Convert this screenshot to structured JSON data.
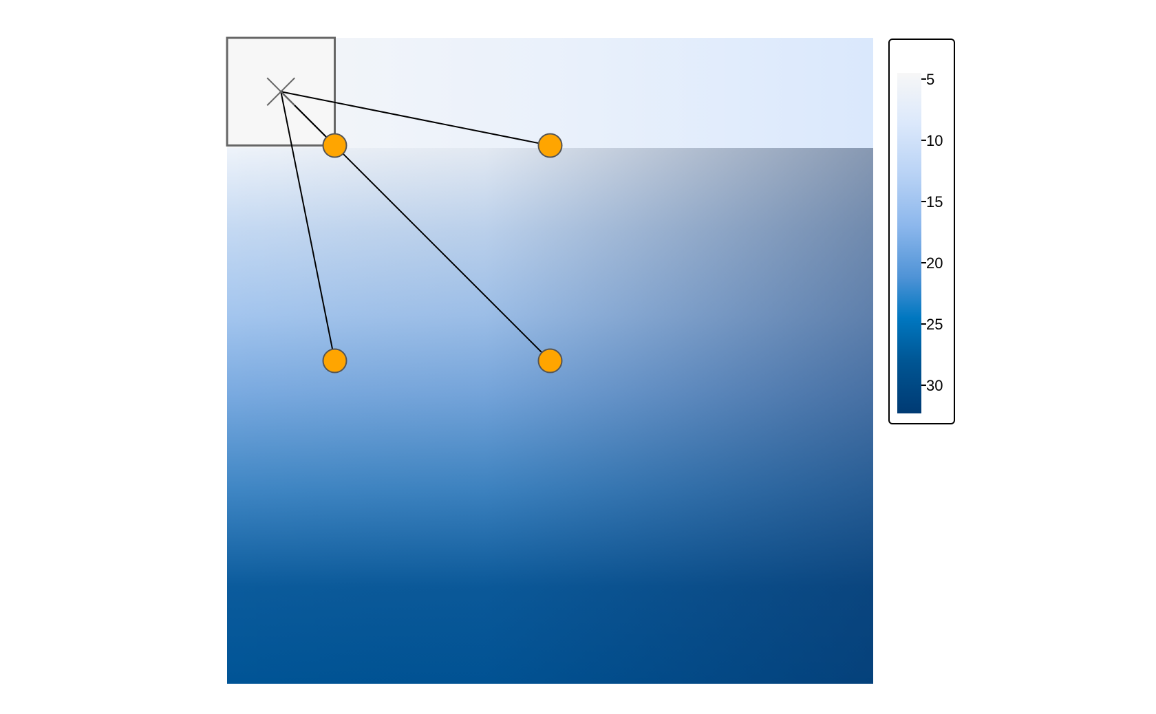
{
  "chart_data": {
    "type": "heatmap",
    "title": "",
    "xlabel": "",
    "ylabel": "",
    "grid": false,
    "xlim": [
      0,
      6
    ],
    "ylim": [
      0,
      6
    ],
    "field": {
      "description_of_values": "continuous raster, low values top-left, high values bottom-right",
      "value_range": [
        4,
        32.5
      ]
    },
    "colorbar": {
      "ticks": [
        5,
        10,
        15,
        20,
        25,
        30
      ],
      "tick_labels": [
        "5",
        "10",
        "15",
        "20",
        "25",
        "30"
      ],
      "range": [
        4.5,
        32.3
      ],
      "colors": [
        "#f7f7f7",
        "#d6e6fb",
        "#b4d0f5",
        "#8db8ec",
        "#5b9bd9",
        "#0072bb",
        "#005ea0",
        "#003f7f",
        "#003068"
      ]
    },
    "target": {
      "x": 0.5,
      "y": 5.5,
      "marker": "cross",
      "box": [
        0,
        5,
        1,
        6
      ]
    },
    "points": [
      {
        "x": 1,
        "y": 5
      },
      {
        "x": 3,
        "y": 5
      },
      {
        "x": 1,
        "y": 3
      },
      {
        "x": 3,
        "y": 3
      }
    ],
    "point_color": "#ffa500",
    "legend": "right"
  }
}
